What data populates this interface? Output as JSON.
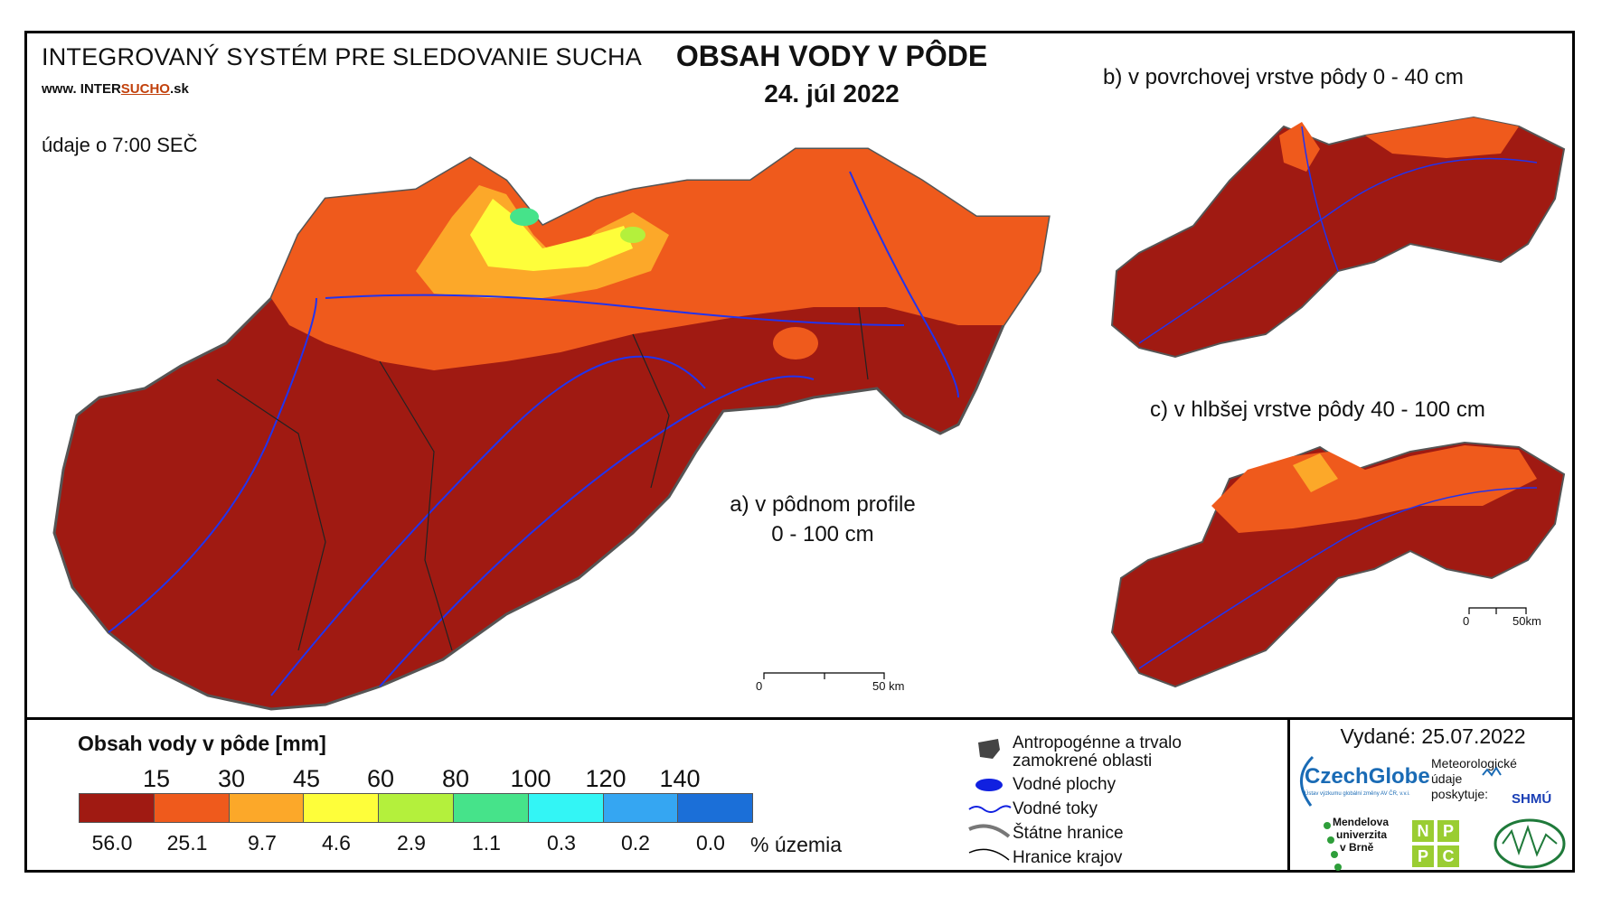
{
  "header": {
    "system_title": "INTEGROVANÝ SYSTÉM PRE SLEDOVANIE SUCHA",
    "site_prefix": "www. INTER",
    "site_highlight": "SUCHO",
    "site_suffix": ".sk",
    "time_note": "údaje o 7:00 SEČ",
    "main_title": "OBSAH VODY V PÔDE",
    "main_date": "24. júl 2022"
  },
  "maps": {
    "a_label_line1": "a) v pôdnom profile",
    "a_label_line2": "0 - 100 cm",
    "b_label": "b) v povrchovej vrstve pôdy 0 - 40 cm",
    "c_label": "c) v hlbšej vrstve pôdy 40 - 100 cm",
    "scale_main": [
      "0",
      "50 km"
    ],
    "scale_small": [
      "0",
      "50km"
    ]
  },
  "legend": {
    "title": "Obsah vody v pôde  [mm]",
    "ticks": [
      "15",
      "30",
      "45",
      "60",
      "80",
      "100",
      "120",
      "140"
    ],
    "classes": [
      {
        "color": "#a01a12",
        "percent": "56.0"
      },
      {
        "color": "#ef5a1c",
        "percent": "25.1"
      },
      {
        "color": "#fca829",
        "percent": "9.7"
      },
      {
        "color": "#fefe3a",
        "percent": "4.6"
      },
      {
        "color": "#b4f03c",
        "percent": "2.9"
      },
      {
        "color": "#46e38a",
        "percent": "1.1"
      },
      {
        "color": "#33f5f5",
        "percent": "0.3"
      },
      {
        "color": "#35a6f2",
        "percent": "0.2"
      },
      {
        "color": "#1b6fd8",
        "percent": "0.0"
      }
    ],
    "percent_unit": "% územia",
    "symbols": {
      "anthro_line1": "Antropogénne a trvalo",
      "anthro_line2": "zamokrené oblasti",
      "water_bodies": "Vodné plochy",
      "water_streams": "Vodné toky",
      "state_border": "Štátne hranice",
      "region_border": "Hranice krajov"
    }
  },
  "footer": {
    "issued": "Vydané: 25.07.2022",
    "czechglobe": "CzechGlobe",
    "czechglobe_sub": "Ústav výzkumu globální změny AV ČR, v.v.i.",
    "meteo_line1": "Meteorologické",
    "meteo_line2": "údaje",
    "meteo_line3": "poskytuje:",
    "shmu": "SHMÚ",
    "mendel_line1": "Mendelova",
    "mendel_line2": "univerzita",
    "mendel_line3": "v Brně",
    "npc": [
      "N",
      "P",
      "P",
      "C"
    ]
  }
}
